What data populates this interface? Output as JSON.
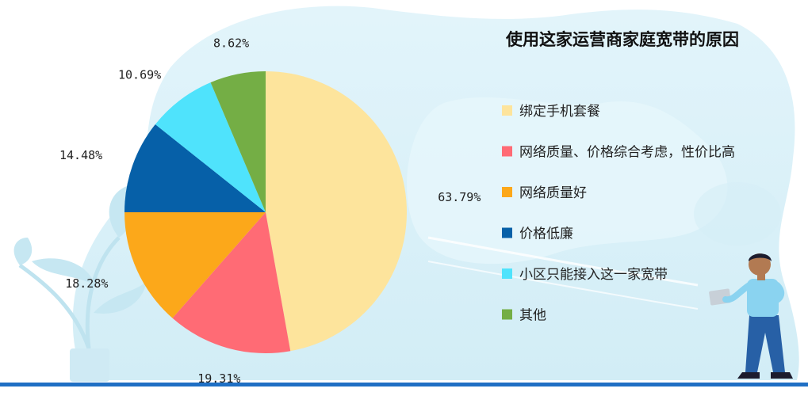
{
  "chart_data": {
    "type": "pie",
    "title": "使用这家运营商家庭宽带的原因",
    "legend_position": "right",
    "slices": [
      {
        "label": "绑定手机套餐",
        "value": 63.79,
        "display": "63.79%",
        "color": "#FDE49C"
      },
      {
        "label": "网络质量、价格综合考虑，性价比高",
        "value": 19.31,
        "display": "19.31%",
        "color": "#FF6B75"
      },
      {
        "label": "网络质量好",
        "value": 18.28,
        "display": "18.28%",
        "color": "#FCA81A"
      },
      {
        "label": "价格低廉",
        "value": 14.48,
        "display": "14.48%",
        "color": "#0660A8"
      },
      {
        "label": "小区只能接入这一家宽带",
        "value": 10.69,
        "display": "10.69%",
        "color": "#4FE3FC"
      },
      {
        "label": "其他",
        "value": 8.62,
        "display": "8.62%",
        "color": "#74AE45"
      }
    ]
  }
}
